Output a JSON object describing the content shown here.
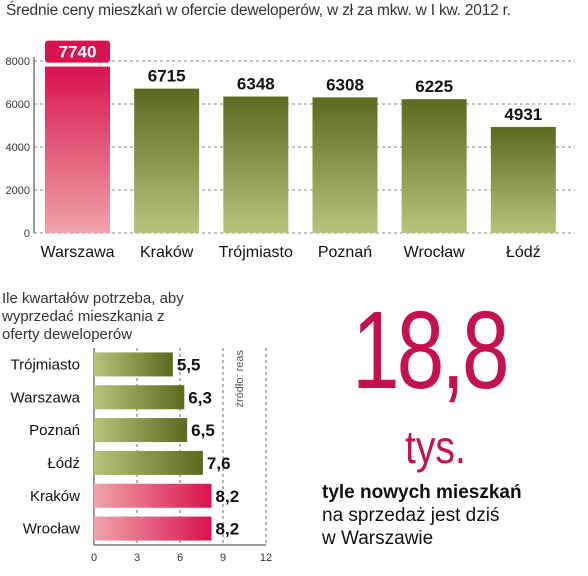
{
  "chart_data": [
    {
      "type": "bar",
      "title": "Średnie ceny mieszkań w ofercie deweloperów, w zł za mkw. w I kw. 2012 r.",
      "categories": [
        "Warszawa",
        "Kraków",
        "Trójmiasto",
        "Poznań",
        "Wrocław",
        "Łódź"
      ],
      "values": [
        7740,
        6715,
        6348,
        6308,
        6225,
        4931
      ],
      "value_labels": [
        "7740",
        "6715",
        "6348",
        "6308",
        "6225",
        "4931"
      ],
      "ylim": [
        0,
        8000
      ],
      "yticks": [
        "0",
        "2000",
        "4000",
        "6000",
        "8000"
      ],
      "highlight_index": 0,
      "colors": {
        "highlight_top": "#d9134f",
        "highlight_bottom": "#f0a3aa",
        "normal_top": "#5a6a1e",
        "normal_bottom": "#b8c47c",
        "label_bg": "#d9134f"
      }
    },
    {
      "type": "bar",
      "orientation": "horizontal",
      "title": "Ile kwartałów potrzeba, aby wyprzedać mieszkania z oferty deweloperów",
      "categories": [
        "Trójmiasto",
        "Warszawa",
        "Poznań",
        "Łódź",
        "Kraków",
        "Wrocław"
      ],
      "values": [
        5.5,
        6.3,
        6.5,
        7.6,
        8.2,
        8.2
      ],
      "value_labels": [
        "5,5",
        "6,3",
        "6,5",
        "7,6",
        "8,2",
        "8,2"
      ],
      "xlim": [
        0,
        12
      ],
      "xticks": [
        "0",
        "3",
        "6",
        "9",
        "12"
      ],
      "highlight_indices": [
        4,
        5
      ],
      "source": "źródło: reas"
    }
  ],
  "headline": {
    "number": "18,8",
    "unit": "tys.",
    "caption_bold": "tyle nowych mieszkań",
    "caption_line2": "na sprzedaż jest dziś",
    "caption_line3": "w Warszawie"
  }
}
